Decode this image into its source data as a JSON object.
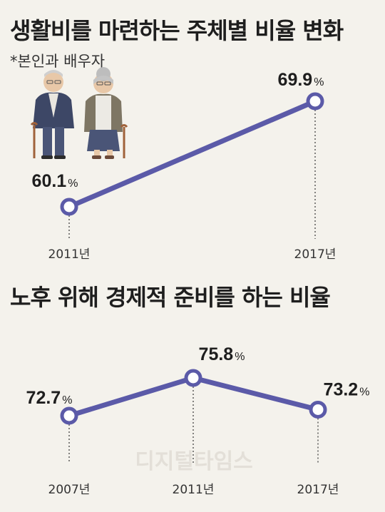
{
  "titles": {
    "chart1": "생활비를 마련하는 주체별 비율 변화",
    "chart2": "노후 위해 경제적 준비를 하는 비율"
  },
  "notes": {
    "chart1": "*본인과 배우자"
  },
  "watermark": "디지털타임스",
  "colors": {
    "line": "#5b5aa8",
    "marker_fill": "#ffffff",
    "background": "#f4f2ec",
    "text": "#222222"
  },
  "illustration": "elderly-couple-with-canes",
  "chart_data": [
    {
      "type": "line",
      "title": "생활비를 마련하는 주체별 비율 변화",
      "note": "*본인과 배우자",
      "x": [
        "2011년",
        "2017년"
      ],
      "series": [
        {
          "values": [
            60.1,
            69.9
          ],
          "labels": [
            "60.1",
            "69.9"
          ]
        }
      ],
      "unit": "%",
      "grid": false,
      "legend": "none"
    },
    {
      "type": "line",
      "title": "노후 위해 경제적 준비를 하는 비율",
      "x": [
        "2007년",
        "2011년",
        "2017년"
      ],
      "series": [
        {
          "values": [
            72.7,
            75.8,
            73.2
          ],
          "labels": [
            "72.7",
            "75.8",
            "73.2"
          ]
        }
      ],
      "unit": "%",
      "grid": false,
      "legend": "none"
    }
  ]
}
